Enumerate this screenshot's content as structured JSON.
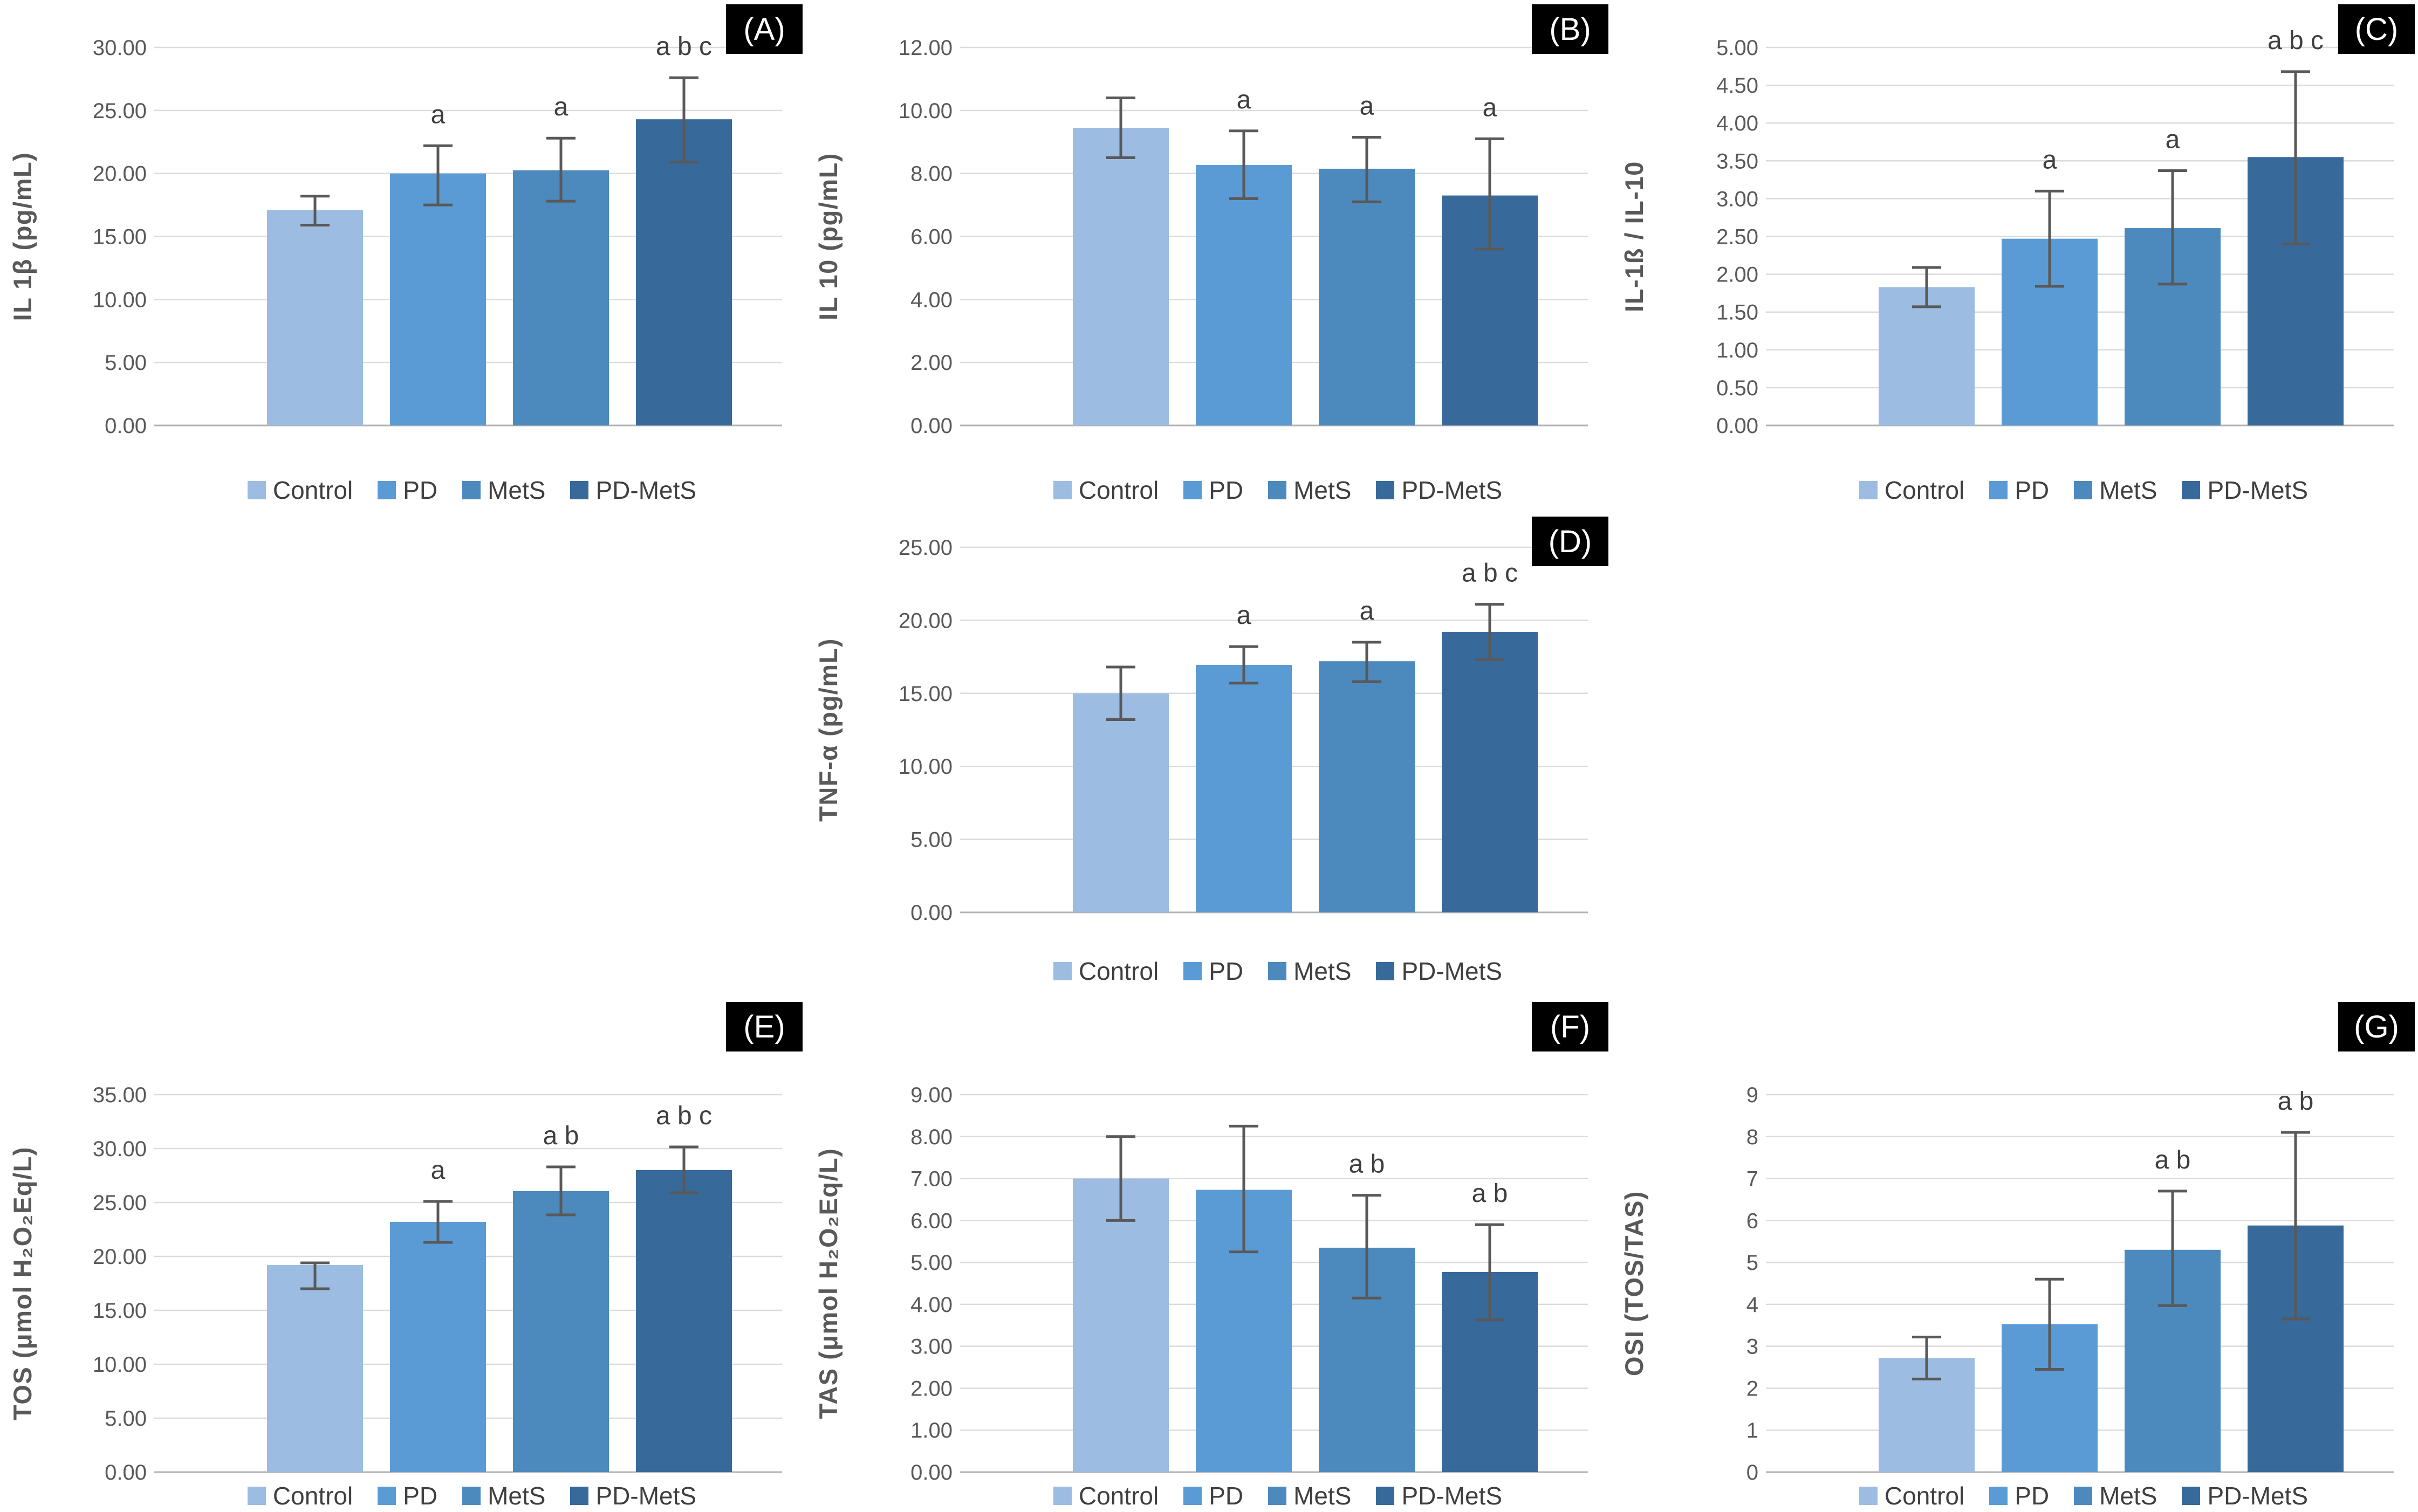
{
  "figure": {
    "background": "#ffffff",
    "groups": [
      "Control",
      "PD",
      "MetS",
      "PD-MetS"
    ],
    "group_colors": [
      "#9CBCE2",
      "#5B9BD5",
      "#4C89BD",
      "#38699B"
    ],
    "error_bar_color": "#595959",
    "gridline_color": "#DBDBDB",
    "axis_line_color": "#B3B3B3",
    "tick_label_color": "#595959",
    "axis_label_color": "#595959",
    "annotation_color": "#3F3F3F",
    "legend_text_color": "#3F3F3F",
    "panel_label_bg": "#000000",
    "panel_label_fg": "#FFFFFF",
    "legend_icon": "square-swatch-icon"
  },
  "chart_data": [
    {
      "id": "A",
      "panel_label": "(A)",
      "type": "bar",
      "row": 1,
      "col": 1,
      "title": "",
      "xlabel": "",
      "ylabel": "IL 1β (pg/mL)",
      "categories": [
        "Control",
        "PD",
        "MetS",
        "PD-MetS"
      ],
      "values": [
        17.1,
        20.0,
        20.25,
        24.3
      ],
      "error_low": [
        15.9,
        17.5,
        17.8,
        20.9
      ],
      "error_high": [
        18.2,
        22.2,
        22.8,
        27.6
      ],
      "annotations": [
        "",
        "a",
        "a",
        "a b c"
      ],
      "ylim": [
        0,
        30
      ],
      "ytick_step": 5,
      "ytick_decimals": 2,
      "grid": true,
      "legend_position": "bottom"
    },
    {
      "id": "B",
      "panel_label": "(B)",
      "type": "bar",
      "row": 1,
      "col": 2,
      "title": "",
      "xlabel": "",
      "ylabel": "IL 10 (pg/mL)",
      "categories": [
        "Control",
        "PD",
        "MetS",
        "PD-MetS"
      ],
      "values": [
        9.45,
        8.27,
        8.15,
        7.3
      ],
      "error_low": [
        8.5,
        7.2,
        7.1,
        5.6
      ],
      "error_high": [
        10.4,
        9.35,
        9.15,
        9.1
      ],
      "annotations": [
        "",
        "a",
        "a",
        "a"
      ],
      "ylim": [
        0,
        12
      ],
      "ytick_step": 2,
      "ytick_decimals": 2,
      "grid": true,
      "legend_position": "bottom"
    },
    {
      "id": "C",
      "panel_label": "(C)",
      "type": "bar",
      "row": 1,
      "col": 3,
      "title": "",
      "xlabel": "",
      "ylabel": "IL-1ß / IL-10",
      "categories": [
        "Control",
        "PD",
        "MetS",
        "PD-MetS"
      ],
      "values": [
        1.83,
        2.47,
        2.61,
        3.55
      ],
      "error_low": [
        1.57,
        1.84,
        1.87,
        2.4
      ],
      "error_high": [
        2.09,
        3.1,
        3.37,
        4.68
      ],
      "annotations": [
        "",
        "a",
        "a",
        "a b c"
      ],
      "ylim": [
        0,
        5
      ],
      "ytick_step": 0.5,
      "ytick_decimals": 2,
      "grid": true,
      "legend_position": "bottom"
    },
    {
      "id": "D",
      "panel_label": "(D)",
      "type": "bar",
      "row": 2,
      "col": 2,
      "title": "",
      "xlabel": "",
      "ylabel": "TNF-α (pg/mL)",
      "categories": [
        "Control",
        "PD",
        "MetS",
        "PD-MetS"
      ],
      "values": [
        15.0,
        16.95,
        17.2,
        19.2
      ],
      "error_low": [
        13.2,
        15.7,
        15.8,
        17.3
      ],
      "error_high": [
        16.8,
        18.2,
        18.5,
        21.1
      ],
      "annotations": [
        "",
        "a",
        "a",
        "a b c"
      ],
      "ylim": [
        0,
        25
      ],
      "ytick_step": 5,
      "ytick_decimals": 2,
      "grid": true,
      "legend_position": "bottom"
    },
    {
      "id": "E",
      "panel_label": "(E)",
      "type": "bar",
      "row": 3,
      "col": 1,
      "title": "",
      "xlabel": "",
      "ylabel": "TOS (μmol H₂O₂Eq/L)",
      "categories": [
        "Control",
        "PD",
        "MetS",
        "PD-MetS"
      ],
      "values": [
        19.2,
        23.2,
        26.05,
        28.0
      ],
      "error_low": [
        17.0,
        21.3,
        23.85,
        25.9
      ],
      "error_high": [
        19.4,
        25.1,
        28.3,
        30.15
      ],
      "annotations": [
        "",
        "a",
        "a b",
        "a b c"
      ],
      "ylim": [
        0,
        35
      ],
      "ytick_step": 5,
      "ytick_decimals": 2,
      "grid": true,
      "legend_position": "bottom"
    },
    {
      "id": "F",
      "panel_label": "(F)",
      "type": "bar",
      "row": 3,
      "col": 2,
      "title": "",
      "xlabel": "",
      "ylabel": "TAS (μmol H₂O₂Eq/L)",
      "categories": [
        "Control",
        "PD",
        "MetS",
        "PD-MetS"
      ],
      "values": [
        7.0,
        6.73,
        5.35,
        4.77
      ],
      "error_low": [
        6.0,
        5.25,
        4.15,
        3.63
      ],
      "error_high": [
        8.0,
        8.25,
        6.6,
        5.9
      ],
      "annotations": [
        "",
        "",
        "a b",
        "a b"
      ],
      "ylim": [
        0,
        9
      ],
      "ytick_step": 1,
      "ytick_decimals": 2,
      "grid": true,
      "legend_position": "bottom"
    },
    {
      "id": "G",
      "panel_label": "(G)",
      "type": "bar",
      "row": 3,
      "col": 3,
      "title": "",
      "xlabel": "",
      "ylabel": "OSI (TOS/TAS)",
      "categories": [
        "Control",
        "PD",
        "MetS",
        "PD-MetS"
      ],
      "values": [
        2.72,
        3.53,
        5.3,
        5.88
      ],
      "error_low": [
        2.22,
        2.45,
        3.97,
        3.65
      ],
      "error_high": [
        3.22,
        4.6,
        6.7,
        8.1
      ],
      "annotations": [
        "",
        "",
        "a b",
        "a b"
      ],
      "ylim": [
        0,
        9
      ],
      "ytick_step": 1,
      "ytick_decimals": 0,
      "grid": true,
      "legend_position": "bottom"
    }
  ]
}
